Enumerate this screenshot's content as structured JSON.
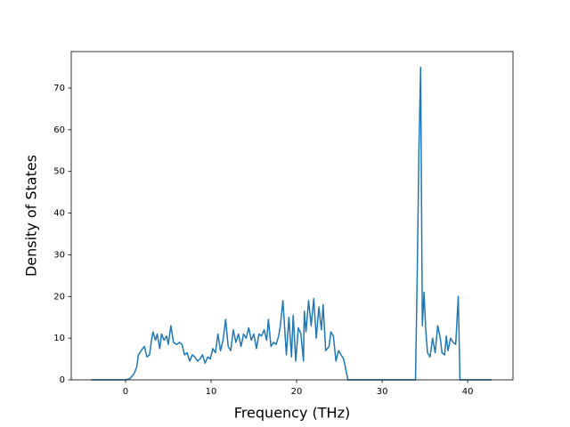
{
  "chart_data": {
    "type": "line",
    "xlabel": "Frequency (THz)",
    "ylabel": "Density of States",
    "x": [
      -4,
      0,
      0.5,
      1,
      1.3,
      1.5,
      2,
      2.2,
      2.5,
      2.8,
      3,
      3.2,
      3.5,
      3.7,
      4,
      4.2,
      4.5,
      4.8,
      5,
      5.3,
      5.6,
      6,
      6.3,
      6.6,
      6.9,
      7.2,
      7.5,
      7.8,
      8.1,
      8.4,
      8.7,
      9,
      9.3,
      9.6,
      9.9,
      10.2,
      10.5,
      10.8,
      11.1,
      11.4,
      11.7,
      12,
      12.3,
      12.6,
      12.9,
      13.2,
      13.5,
      13.8,
      14.1,
      14.4,
      14.7,
      15,
      15.3,
      15.6,
      15.9,
      16.2,
      16.5,
      16.7,
      17,
      17.3,
      17.6,
      17.9,
      18.1,
      18.4,
      18.8,
      19.1,
      19.4,
      19.6,
      19.9,
      20.2,
      20.5,
      20.8,
      20.9,
      21.1,
      21.4,
      21.7,
      22,
      22.3,
      22.6,
      22.9,
      23.1,
      23.4,
      23.8,
      24,
      24.3,
      24.6,
      24.9,
      25.2,
      25.5,
      25.8,
      26,
      33.9,
      34.1,
      34.3,
      34.5,
      34.7,
      34.9,
      35.1,
      35.3,
      35.6,
      35.9,
      36.2,
      36.5,
      36.8,
      37,
      37.3,
      37.5,
      37.7,
      38,
      38.3,
      38.6,
      38.9,
      39.1,
      42.8
    ],
    "values": [
      0,
      0,
      0.3,
      1.5,
      3,
      6,
      7.5,
      8,
      5.5,
      6,
      9,
      11.5,
      9.5,
      11,
      7.5,
      11,
      9.5,
      10.5,
      8.5,
      13,
      9,
      8.5,
      9,
      8.5,
      6,
      6.5,
      4.5,
      6,
      5.5,
      4.5,
      5,
      6,
      4,
      5.5,
      5,
      7.5,
      6.5,
      11,
      7,
      9.5,
      14.5,
      8,
      7,
      12,
      9,
      11,
      8,
      11,
      10,
      12.5,
      9.5,
      11,
      7.5,
      11,
      10.5,
      12,
      9.5,
      14.5,
      8,
      9,
      8.5,
      10.5,
      13,
      19,
      6,
      15,
      5.5,
      15.5,
      4.5,
      12.5,
      11,
      4.5,
      16.5,
      11.5,
      19,
      13,
      19.5,
      10,
      17.5,
      12,
      18,
      7,
      8,
      11.5,
      10.5,
      4.5,
      7,
      6,
      5,
      2,
      0,
      0,
      25,
      55,
      75,
      13,
      21,
      12,
      6.5,
      5.5,
      10,
      6.5,
      13,
      10,
      6.5,
      6,
      10.5,
      7,
      10,
      9,
      8.5,
      20,
      0,
      0
    ],
    "color": "#1f77b4",
    "xlim": [
      -6.35,
      45.3
    ],
    "xticks": [
      0,
      10,
      20,
      30,
      40
    ],
    "ylim": [
      0,
      78.75
    ],
    "yticks": [
      0,
      10,
      20,
      30,
      40,
      50,
      60,
      70
    ]
  }
}
